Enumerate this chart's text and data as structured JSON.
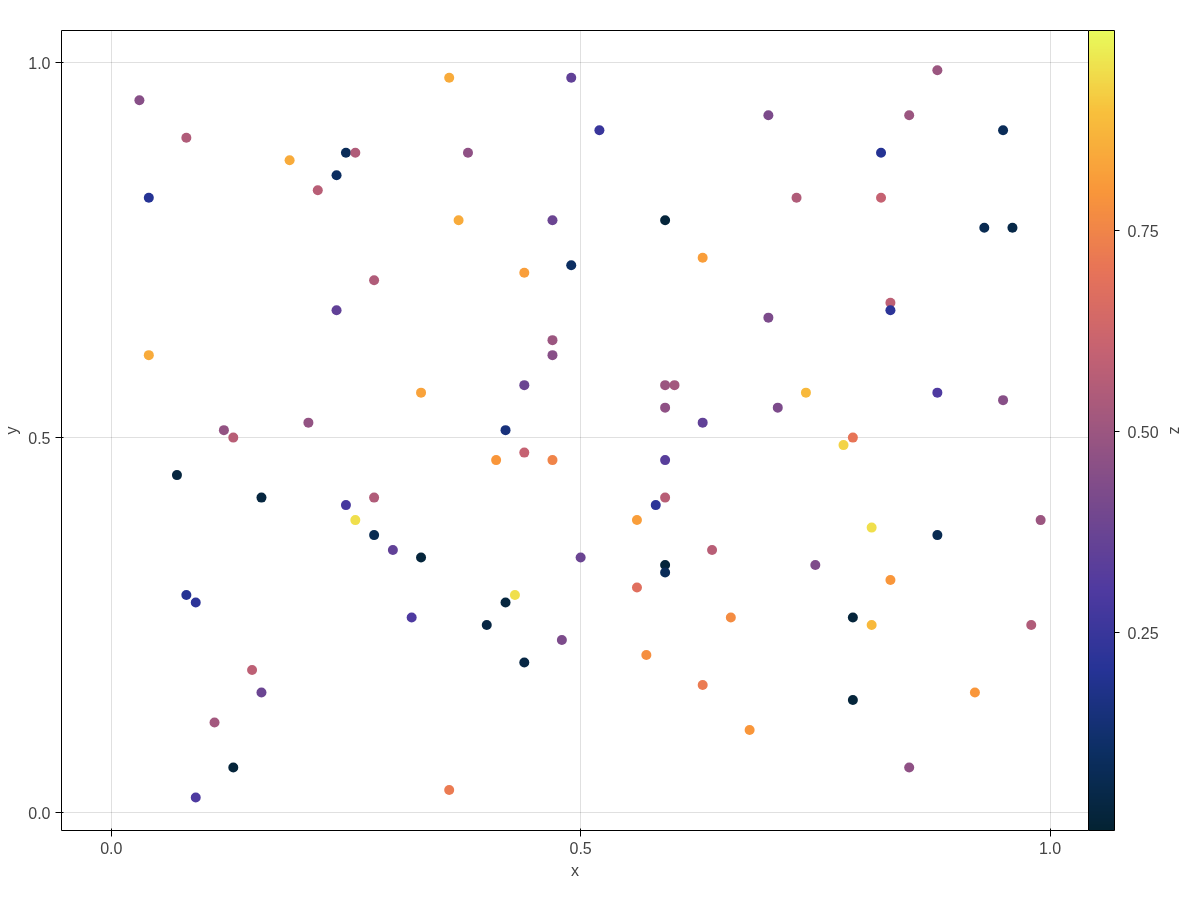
{
  "chart_data": {
    "type": "scatter",
    "xlabel": "x",
    "ylabel": "y",
    "clabel": "z",
    "xlim": [
      -0.053,
      1.041
    ],
    "ylim": [
      -0.024,
      1.043
    ],
    "xticks": [
      {
        "value": 0,
        "label": "0.0"
      },
      0.5,
      {
        "value": 1,
        "label": "1.0"
      }
    ],
    "yticks": [
      {
        "value": 0,
        "label": "0.0"
      },
      0.5,
      {
        "value": 1,
        "label": "1.0"
      }
    ],
    "clim": [
      0.004,
      0.999
    ],
    "cticks": [
      0.25,
      {
        "value": 0.5,
        "label": "0.50"
      },
      0.75
    ],
    "grid": true,
    "marker": "circle",
    "x": [
      0.03,
      0.08,
      0.04,
      0.19,
      0.22,
      0.24,
      0.25,
      0.26,
      0.36,
      0.38,
      0.49,
      0.52,
      0.7,
      0.88,
      0.85,
      0.95,
      0.82,
      0.73,
      0.82,
      0.93,
      0.96,
      0.59,
      0.47,
      0.37,
      0.49,
      0.63,
      0.44,
      0.28,
      0.24,
      0.7,
      0.83,
      0.83,
      0.04,
      0.47,
      0.47,
      0.44,
      0.33,
      0.59,
      0.6,
      0.74,
      0.88,
      0.95,
      0.71,
      0.59,
      0.63,
      0.12,
      0.21,
      0.13,
      0.42,
      0.79,
      0.78,
      0.41,
      0.44,
      0.47,
      0.59,
      0.07,
      0.16,
      0.25,
      0.28,
      0.59,
      0.58,
      0.26,
      0.56,
      0.28,
      0.81,
      0.88,
      0.99,
      0.3,
      0.33,
      0.5,
      0.64,
      0.75,
      0.59,
      0.59,
      0.83,
      0.56,
      0.08,
      0.09,
      0.43,
      0.42,
      0.32,
      0.66,
      0.79,
      0.4,
      0.81,
      0.98,
      0.48,
      0.57,
      0.44,
      0.15,
      0.63,
      0.16,
      0.79,
      0.92,
      0.11,
      0.68,
      0.13,
      0.85,
      0.09,
      0.36
    ],
    "values": [
      0.95,
      0.9,
      0.82,
      0.87,
      0.83,
      0.85,
      0.88,
      0.88,
      0.98,
      0.88,
      0.98,
      0.91,
      0.93,
      0.99,
      0.93,
      0.91,
      0.88,
      0.82,
      0.82,
      0.78,
      0.78,
      0.79,
      0.79,
      0.79,
      0.73,
      0.74,
      0.72,
      0.71,
      0.67,
      0.66,
      0.68,
      0.67,
      0.61,
      0.63,
      0.61,
      0.57,
      0.56,
      0.57,
      0.57,
      0.56,
      0.56,
      0.55,
      0.54,
      0.54,
      0.52,
      0.51,
      0.52,
      0.5,
      0.51,
      0.5,
      0.49,
      0.47,
      0.48,
      0.47,
      0.47,
      0.45,
      0.42,
      0.41,
      0.42,
      0.42,
      0.41,
      0.39,
      0.39,
      0.37,
      0.38,
      0.37,
      0.39,
      0.35,
      0.34,
      0.34,
      0.35,
      0.33,
      0.33,
      0.32,
      0.31,
      0.3,
      0.29,
      0.28,
      0.29,
      0.28,
      0.26,
      0.26,
      0.26,
      0.25,
      0.25,
      0.25,
      0.23,
      0.21,
      0.2,
      0.19,
      0.17,
      0.16,
      0.15,
      0.16,
      0.12,
      0.11,
      0.06,
      0.06,
      0.02,
      0.03
    ],
    "cvalues": [
      0.45,
      0.55,
      0.2,
      0.85,
      0.57,
      0.1,
      0.08,
      0.55,
      0.85,
      0.47,
      0.35,
      0.25,
      0.42,
      0.5,
      0.5,
      0.08,
      0.2,
      0.55,
      0.6,
      0.07,
      0.05,
      0.02,
      0.38,
      0.85,
      0.1,
      0.82,
      0.82,
      0.55,
      0.35,
      0.42,
      0.58,
      0.22,
      0.85,
      0.5,
      0.45,
      0.38,
      0.83,
      0.5,
      0.52,
      0.88,
      0.3,
      0.45,
      0.42,
      0.47,
      0.35,
      0.48,
      0.48,
      0.57,
      0.15,
      0.7,
      0.93,
      0.8,
      0.6,
      0.75,
      0.33,
      0.03,
      0.03,
      0.28,
      0.55,
      0.57,
      0.22,
      0.95,
      0.82,
      0.07,
      0.95,
      0.07,
      0.5,
      0.35,
      0.02,
      0.38,
      0.57,
      0.43,
      0.02,
      0.08,
      0.8,
      0.68,
      0.2,
      0.22,
      0.95,
      0.03,
      0.3,
      0.77,
      0.02,
      0.04,
      0.88,
      0.55,
      0.42,
      0.78,
      0.04,
      0.58,
      0.72,
      0.38,
      0.02,
      0.8,
      0.52,
      0.8,
      0.02,
      0.47,
      0.3,
      0.72
    ]
  }
}
